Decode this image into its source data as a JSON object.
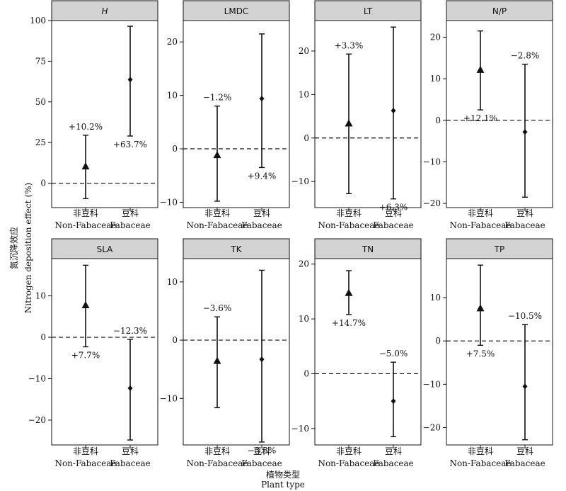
{
  "figure": {
    "ylabel_cn": "氮沉降效应",
    "ylabel_en": "Nitrogen deposition effect (%)",
    "xlabel_cn": "植物类型",
    "xlabel_en": "Plant type",
    "category_cn": [
      "非豆科",
      "豆科"
    ],
    "category_en": [
      "Non-Fabaceae",
      "Fabaceae"
    ],
    "colors": {
      "strip_fill": "#d3d3d3",
      "ink": "#111111"
    }
  },
  "chart_data": [
    {
      "type": "pointrange",
      "title": "H",
      "title_italic": true,
      "categories": [
        "Non-Fabaceae",
        "Fabaceae"
      ],
      "means": [
        10.2,
        63.7
      ],
      "ci_low": [
        -9.5,
        29.0
      ],
      "ci_high": [
        29.5,
        96.5
      ],
      "labels": [
        "+10.2%",
        "+63.7%"
      ],
      "markers": [
        "triangle",
        "diamond"
      ],
      "ylim": [
        -15,
        100
      ],
      "yticks": [
        0,
        25,
        50,
        75,
        100
      ],
      "reference_line": 0
    },
    {
      "type": "pointrange",
      "title": "LMDC",
      "categories": [
        "Non-Fabaceae",
        "Fabaceae"
      ],
      "means": [
        -1.2,
        9.4
      ],
      "ci_low": [
        -9.8,
        -3.5
      ],
      "ci_high": [
        8.0,
        21.5
      ],
      "labels": [
        "−1.2%",
        "+9.4%"
      ],
      "markers": [
        "triangle",
        "diamond"
      ],
      "ylim": [
        -11,
        24
      ],
      "yticks": [
        -10,
        0,
        10,
        20
      ],
      "reference_line": 0
    },
    {
      "type": "pointrange",
      "title": "LT",
      "categories": [
        "Non-Fabaceae",
        "Fabaceae"
      ],
      "means": [
        3.3,
        6.3
      ],
      "ci_low": [
        -12.8,
        -14.0
      ],
      "ci_high": [
        19.3,
        25.5
      ],
      "labels": [
        "+3.3%",
        "+6.3%"
      ],
      "markers": [
        "triangle",
        "diamond"
      ],
      "ylim": [
        -16,
        27
      ],
      "yticks": [
        -10,
        0,
        10,
        20
      ],
      "reference_line": 0
    },
    {
      "type": "pointrange",
      "title": "N/P",
      "categories": [
        "Non-Fabaceae",
        "Fabaceae"
      ],
      "means": [
        12.1,
        -2.8
      ],
      "ci_low": [
        2.5,
        -18.5
      ],
      "ci_high": [
        21.5,
        13.5
      ],
      "labels": [
        "+12.1%",
        "−2.8%"
      ],
      "markers": [
        "triangle",
        "diamond"
      ],
      "ylim": [
        -21,
        24
      ],
      "yticks": [
        -20,
        -10,
        0,
        10,
        20
      ],
      "reference_line": 0
    },
    {
      "type": "pointrange",
      "title": "SLA",
      "categories": [
        "Non-Fabaceae",
        "Fabaceae"
      ],
      "means": [
        7.7,
        -12.3
      ],
      "ci_low": [
        -2.3,
        -24.8
      ],
      "ci_high": [
        17.4,
        -0.5
      ],
      "labels": [
        "+7.7%",
        "−12.3%"
      ],
      "markers": [
        "triangle",
        "diamond"
      ],
      "ylim": [
        -26,
        19
      ],
      "yticks": [
        -20,
        -10,
        0,
        10
      ],
      "reference_line": 0
    },
    {
      "type": "pointrange",
      "title": "TK",
      "categories": [
        "Non-Fabaceae",
        "Fabaceae"
      ],
      "means": [
        -3.6,
        -3.3
      ],
      "ci_low": [
        -11.6,
        -17.5
      ],
      "ci_high": [
        4.0,
        12.0
      ],
      "labels": [
        "−3.6%",
        "−3.3%"
      ],
      "markers": [
        "triangle",
        "diamond"
      ],
      "ylim": [
        -18,
        14
      ],
      "yticks": [
        -10,
        0,
        10
      ],
      "reference_line": 0
    },
    {
      "type": "pointrange",
      "title": "TN",
      "categories": [
        "Non-Fabaceae",
        "Fabaceae"
      ],
      "means": [
        14.7,
        -5.0
      ],
      "ci_low": [
        10.8,
        -11.5
      ],
      "ci_high": [
        18.8,
        2.1
      ],
      "labels": [
        "+14.7%",
        "−5.0%"
      ],
      "markers": [
        "triangle",
        "diamond"
      ],
      "ylim": [
        -13,
        21
      ],
      "yticks": [
        -10,
        0,
        10,
        20
      ],
      "reference_line": 0
    },
    {
      "type": "pointrange",
      "title": "TP",
      "categories": [
        "Non-Fabaceae",
        "Fabaceae"
      ],
      "means": [
        7.5,
        -10.5
      ],
      "ci_low": [
        -1.0,
        -22.8
      ],
      "ci_high": [
        17.5,
        3.8
      ],
      "labels": [
        "+7.5%",
        "−10.5%"
      ],
      "markers": [
        "triangle",
        "diamond"
      ],
      "ylim": [
        -24,
        19
      ],
      "yticks": [
        -20,
        -10,
        0,
        10
      ],
      "reference_line": 0
    }
  ]
}
